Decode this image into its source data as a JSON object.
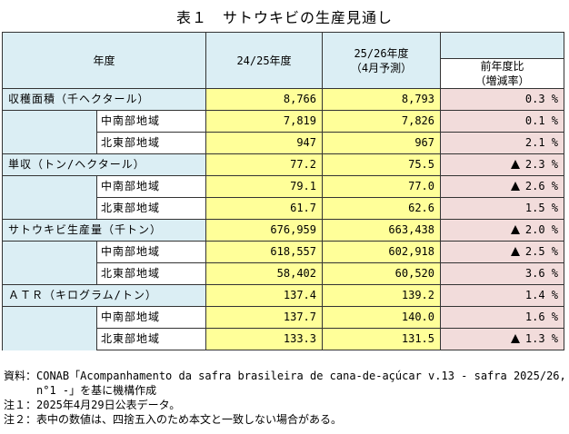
{
  "title": "表１　サトウキビの生産見通し",
  "header": {
    "year_label": "年度",
    "col1": "24/25年度",
    "col2_line1": "25/26年度",
    "col2_line2": "（4月予測）",
    "col3_line1": "前年度比",
    "col3_line2": "（増減率）"
  },
  "rows": [
    {
      "category": "収穫面積（千ヘクタール）",
      "v1": "8,766",
      "v2": "8,793",
      "pct": "0.3 %",
      "neg": false
    },
    {
      "region": "中南部地域",
      "v1": "7,819",
      "v2": "7,826",
      "pct": "0.1 %",
      "neg": false
    },
    {
      "region": "北東部地域",
      "v1": "947",
      "v2": "967",
      "pct": "2.1 %",
      "neg": false
    },
    {
      "category": "単収（トン/ヘクタール）",
      "v1": "77.2",
      "v2": "75.5",
      "pct": "2.3 %",
      "neg": true
    },
    {
      "region": "中南部地域",
      "v1": "79.1",
      "v2": "77.0",
      "pct": "2.6 %",
      "neg": true
    },
    {
      "region": "北東部地域",
      "v1": "61.7",
      "v2": "62.6",
      "pct": "1.5 %",
      "neg": false
    },
    {
      "category": "サトウキビ生産量（千トン）",
      "v1": "676,959",
      "v2": "663,438",
      "pct": "2.0 %",
      "neg": true
    },
    {
      "region": "中南部地域",
      "v1": "618,557",
      "v2": "602,918",
      "pct": "2.5 %",
      "neg": true
    },
    {
      "region": "北東部地域",
      "v1": "58,402",
      "v2": "60,520",
      "pct": "3.6 %",
      "neg": false
    },
    {
      "category": "ＡＴＲ（キログラム/トン）",
      "v1": "137.4",
      "v2": "139.2",
      "pct": "1.4 %",
      "neg": false
    },
    {
      "region": "中南部地域",
      "v1": "137.7",
      "v2": "140.0",
      "pct": "1.6 %",
      "neg": false
    },
    {
      "region": "北東部地域",
      "v1": "133.3",
      "v2": "131.5",
      "pct": "1.3 %",
      "neg": true
    }
  ],
  "notes": {
    "source_line1": "資料：CONAB「Acompanhamento da safra brasileira de cana-de-açúcar v.13 - safra 2025/26,",
    "source_line2": "n°1 -」を基に機構作成",
    "note1": "注１：2025年4月29日公表データ。",
    "note2": "注２：表中の数値は、四捨五入のため本文と一致しない場合がある。"
  },
  "colors": {
    "blue": "#dbeef4",
    "yellow": "#ffff99",
    "pink": "#f2dcdb"
  },
  "icons": {
    "decrease": "triangle-up-icon"
  }
}
